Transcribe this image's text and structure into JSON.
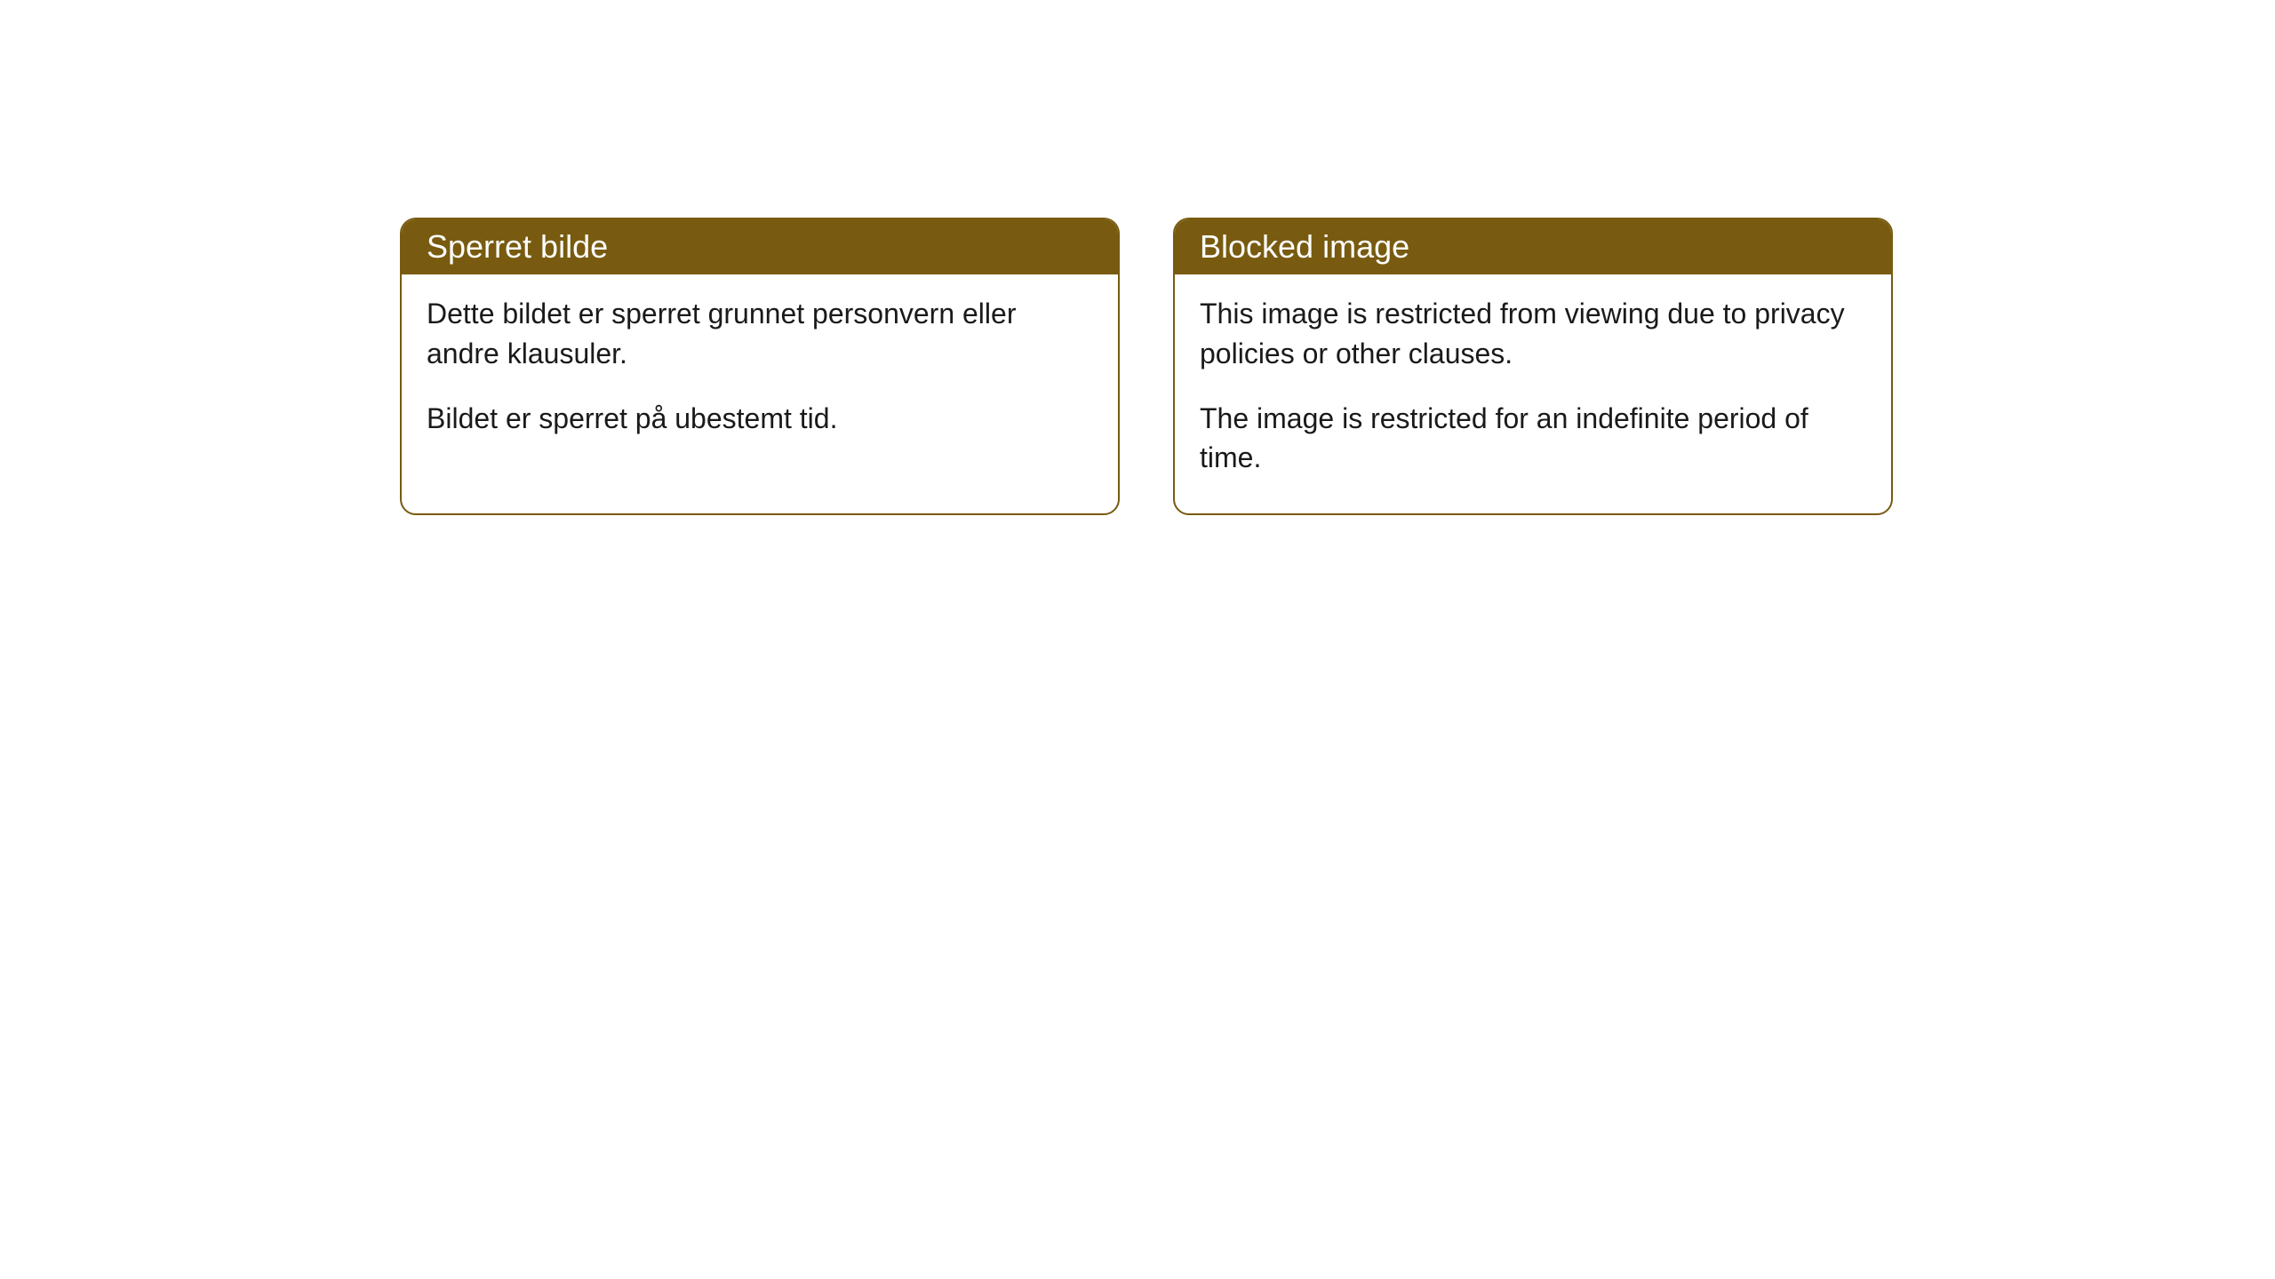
{
  "cards": [
    {
      "title": "Sperret bilde",
      "paragraph1": "Dette bildet er sperret grunnet personvern eller andre klausuler.",
      "paragraph2": "Bildet er sperret på ubestemt tid."
    },
    {
      "title": "Blocked image",
      "paragraph1": "This image is restricted from viewing due to privacy policies or other clauses.",
      "paragraph2": "The image is restricted for an indefinite period of time."
    }
  ],
  "style": {
    "header_bg_color": "#785b10",
    "header_text_color": "#ffffff",
    "border_color": "#785b10",
    "body_text_color": "#1a1a1a",
    "background_color": "#ffffff",
    "border_radius": 18,
    "header_fontsize": 36,
    "body_fontsize": 32
  }
}
